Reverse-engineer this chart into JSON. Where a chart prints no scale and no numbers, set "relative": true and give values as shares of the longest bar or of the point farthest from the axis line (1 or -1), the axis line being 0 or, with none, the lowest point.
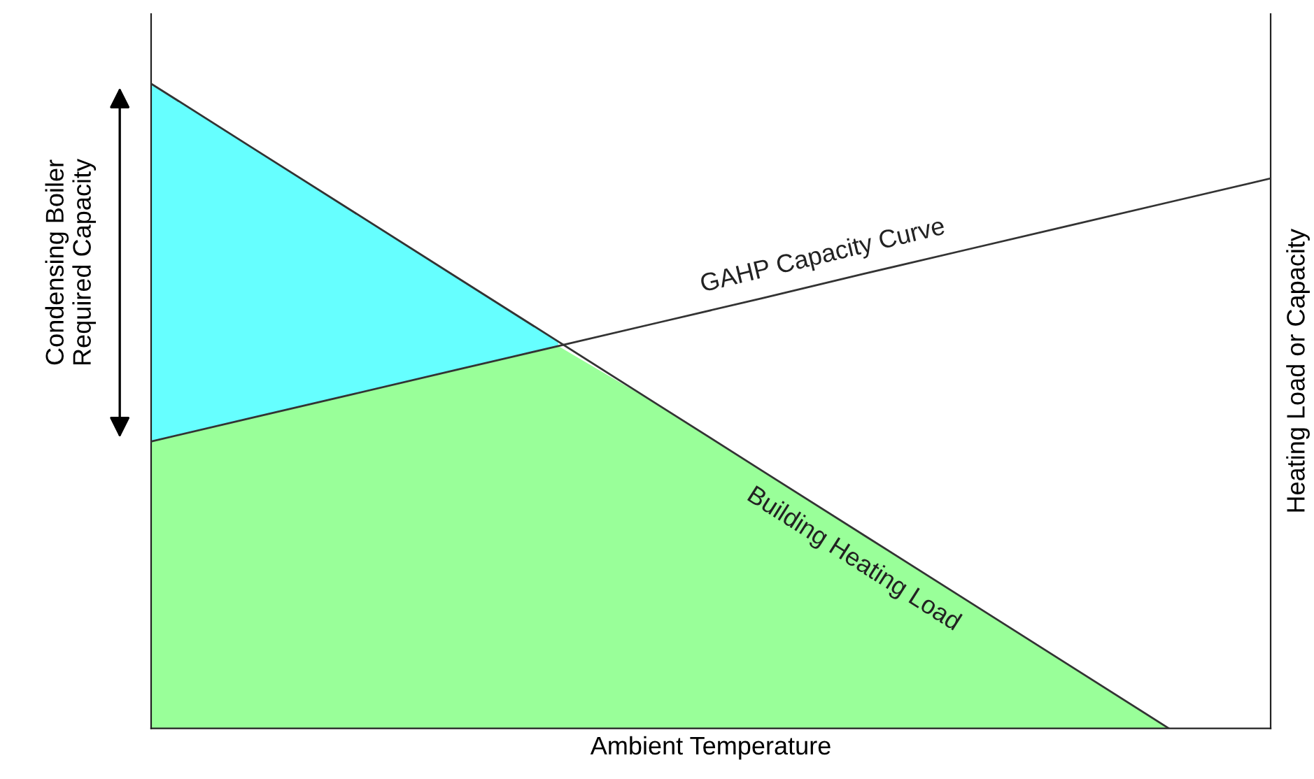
{
  "chart_data": {
    "type": "line",
    "relative": true,
    "categories": [
      null,
      null,
      null,
      null,
      null,
      null,
      null,
      null,
      null,
      null,
      null,
      null
    ],
    "series": [
      {
        "type": "area",
        "color": "#99ff99",
        "values": [
          0.445,
          0.482,
          0.519,
          0.556,
          0.593,
          0.5,
          0.4,
          0.3,
          0.2,
          0.1,
          0,
          null
        ]
      },
      {
        "name": "GAHP Capacity Curve",
        "color": "#333333",
        "values": [
          0.445,
          0.482,
          0.519,
          0.556,
          0.593,
          0.63,
          0.667,
          0.705,
          0.742,
          0.779,
          0.816,
          0.853
        ]
      },
      {
        "name": "Building Heating Load",
        "color": "#333333",
        "values": [
          1,
          0.9,
          0.8,
          0.7,
          0.6,
          0.5,
          0.4,
          0.3,
          0.2,
          0.1,
          0,
          null
        ]
      },
      {
        "type": "area",
        "color": "#66ffff",
        "values": [
          1,
          0.9,
          0.8,
          0.7,
          0.6,
          null,
          null,
          null,
          null,
          null,
          null,
          null
        ]
      }
    ],
    "xlabel": "Ambient Temperature",
    "ylabel": "Heating Load or Capacity",
    "annotations": [
      "Condensing Boiler\nRequired Capacity"
    ],
    "legend": false
  }
}
